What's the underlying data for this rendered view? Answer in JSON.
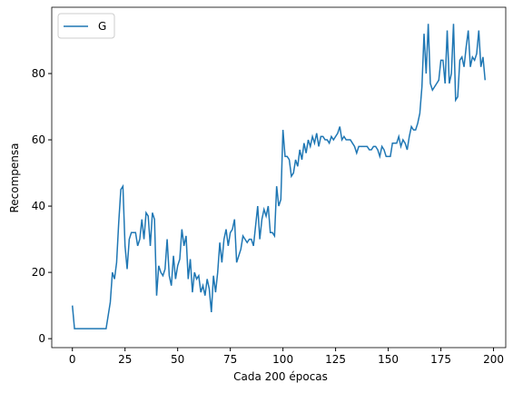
{
  "chart_data": {
    "type": "line",
    "xlabel": "Cada 200 épocas",
    "ylabel": "Recompensa",
    "x": [
      0,
      1,
      2,
      3,
      4,
      5,
      6,
      7,
      8,
      9,
      10,
      11,
      12,
      13,
      14,
      15,
      16,
      17,
      18,
      19,
      20,
      21,
      22,
      23,
      24,
      25,
      26,
      27,
      28,
      29,
      30,
      31,
      32,
      33,
      34,
      35,
      36,
      37,
      38,
      39,
      40,
      41,
      42,
      43,
      44,
      45,
      46,
      47,
      48,
      49,
      50,
      51,
      52,
      53,
      54,
      55,
      56,
      57,
      58,
      59,
      60,
      61,
      62,
      63,
      64,
      65,
      66,
      67,
      68,
      69,
      70,
      71,
      72,
      73,
      74,
      75,
      76,
      77,
      78,
      79,
      80,
      81,
      82,
      83,
      84,
      85,
      86,
      87,
      88,
      89,
      90,
      91,
      92,
      93,
      94,
      95,
      96,
      97,
      98,
      99,
      100,
      101,
      102,
      103,
      104,
      105,
      106,
      107,
      108,
      109,
      110,
      111,
      112,
      113,
      114,
      115,
      116,
      117,
      118,
      119,
      120,
      121,
      122,
      123,
      124,
      125,
      126,
      127,
      128,
      129,
      130,
      131,
      132,
      133,
      134,
      135,
      136,
      137,
      138,
      139,
      140,
      141,
      142,
      143,
      144,
      145,
      146,
      147,
      148,
      149,
      150,
      151,
      152,
      153,
      154,
      155,
      156,
      157,
      158,
      159,
      160,
      161,
      162,
      163,
      164,
      165,
      166,
      167,
      168,
      169,
      170,
      171,
      172,
      173,
      174,
      175,
      176,
      177,
      178,
      179,
      180,
      181,
      182,
      183,
      184,
      185,
      186,
      187,
      188,
      189,
      190,
      191,
      192,
      193,
      194,
      195,
      196
    ],
    "series": [
      {
        "name": "G",
        "color": "#1f77b4",
        "values": [
          10,
          3,
          3,
          3,
          3,
          3,
          3,
          3,
          3,
          3,
          3,
          3,
          3,
          3,
          3,
          3,
          3,
          7,
          11,
          20,
          18,
          23,
          35,
          45,
          46,
          28,
          21,
          30,
          32,
          32,
          32,
          28,
          30,
          36,
          30,
          38,
          37,
          28,
          38,
          36,
          13,
          22,
          20,
          19,
          21,
          30,
          19,
          16,
          25,
          18,
          22,
          24,
          33,
          28,
          31,
          18,
          24,
          14,
          20,
          18,
          19,
          14,
          16,
          13,
          18,
          15,
          8,
          19,
          14,
          20,
          29,
          23,
          30,
          33,
          28,
          32,
          33,
          36,
          23,
          25,
          27,
          31,
          30,
          29,
          30,
          30,
          28,
          34,
          40,
          30,
          36,
          39,
          37,
          40,
          32,
          32,
          31,
          46,
          40,
          42,
          63,
          55,
          55,
          54,
          49,
          50,
          54,
          52,
          57,
          54,
          59,
          56,
          60,
          58,
          61,
          59,
          62,
          58,
          61,
          61,
          60,
          60,
          59,
          61,
          60,
          61,
          62,
          64,
          60,
          61,
          60,
          60,
          60,
          59,
          58,
          56,
          58,
          58,
          58,
          58,
          58,
          57,
          57,
          58,
          58,
          57,
          55,
          58,
          57,
          55,
          55,
          55,
          59,
          59,
          59,
          61,
          58,
          60,
          59,
          57,
          61,
          64,
          63,
          63,
          65,
          68,
          76,
          92,
          80,
          95,
          77,
          75,
          76,
          77,
          78,
          84,
          84,
          77,
          93,
          77,
          80,
          95,
          72,
          73,
          84,
          85,
          82,
          88,
          93,
          82,
          85,
          84,
          86,
          93,
          82,
          85,
          78
        ]
      }
    ],
    "xlim": [
      -9.8,
      205.8
    ],
    "ylim": [
      -2.7,
      100
    ],
    "xticks": [
      0,
      25,
      50,
      75,
      100,
      125,
      150,
      175,
      200
    ],
    "yticks": [
      0,
      20,
      40,
      60,
      80
    ],
    "legend": "upper left"
  }
}
